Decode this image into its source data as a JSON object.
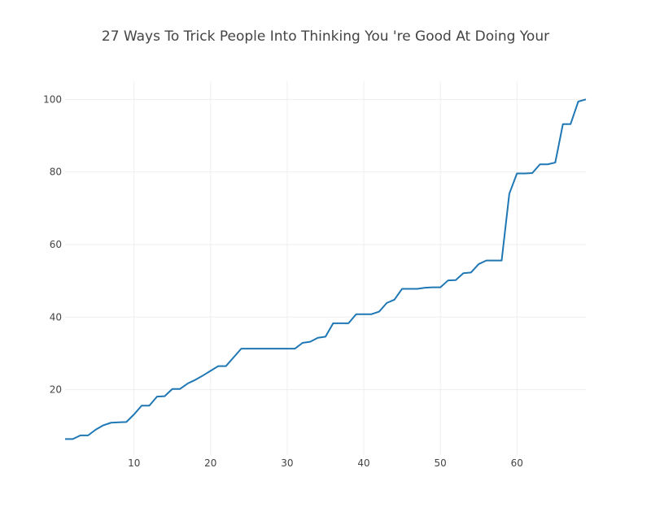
{
  "chart_data": {
    "type": "line",
    "title": "27 Ways To Trick People Into Thinking You 're Good At Doing Your",
    "xlabel": "",
    "ylabel": "",
    "xlim": [
      1,
      69
    ],
    "ylim": [
      2,
      105
    ],
    "x_ticks": [
      10,
      20,
      30,
      40,
      50,
      60
    ],
    "y_ticks": [
      20,
      40,
      60,
      80,
      100
    ],
    "grid": true,
    "legend": "none",
    "colors": {
      "line": "#1f77b4",
      "grid": "#eeeeee",
      "text": "#444444"
    },
    "series": [
      {
        "x": [
          1,
          2,
          3,
          4,
          5,
          6,
          7,
          8,
          9,
          10,
          11,
          12,
          13,
          14,
          15,
          16,
          17,
          18,
          19,
          20,
          21,
          22,
          23,
          24,
          25,
          26,
          27,
          28,
          29,
          30,
          31,
          32,
          33,
          34,
          35,
          36,
          37,
          38,
          39,
          40,
          41,
          42,
          43,
          44,
          45,
          46,
          47,
          48,
          49,
          50,
          51,
          52,
          53,
          54,
          55,
          56,
          57,
          58,
          59,
          60,
          61,
          62,
          63,
          64,
          65,
          66,
          67,
          68,
          69
        ],
        "y": [
          6.4,
          6.4,
          7.4,
          7.4,
          9.0,
          10.2,
          10.9,
          11.0,
          11.1,
          13.2,
          15.6,
          15.6,
          18.1,
          18.2,
          20.2,
          20.2,
          21.7,
          22.7,
          23.9,
          25.2,
          26.5,
          26.5,
          28.9,
          31.3,
          31.3,
          31.3,
          31.3,
          31.3,
          31.3,
          31.3,
          31.3,
          32.9,
          33.2,
          34.3,
          34.6,
          38.3,
          38.3,
          38.3,
          40.8,
          40.8,
          40.8,
          41.5,
          43.9,
          44.8,
          47.8,
          47.8,
          47.8,
          48.1,
          48.2,
          48.2,
          50.1,
          50.2,
          52.1,
          52.3,
          54.6,
          55.6,
          55.6,
          55.6,
          74.0,
          79.6,
          79.6,
          79.7,
          82.1,
          82.1,
          82.6,
          93.2,
          93.2,
          99.4,
          100.0
        ]
      }
    ]
  }
}
